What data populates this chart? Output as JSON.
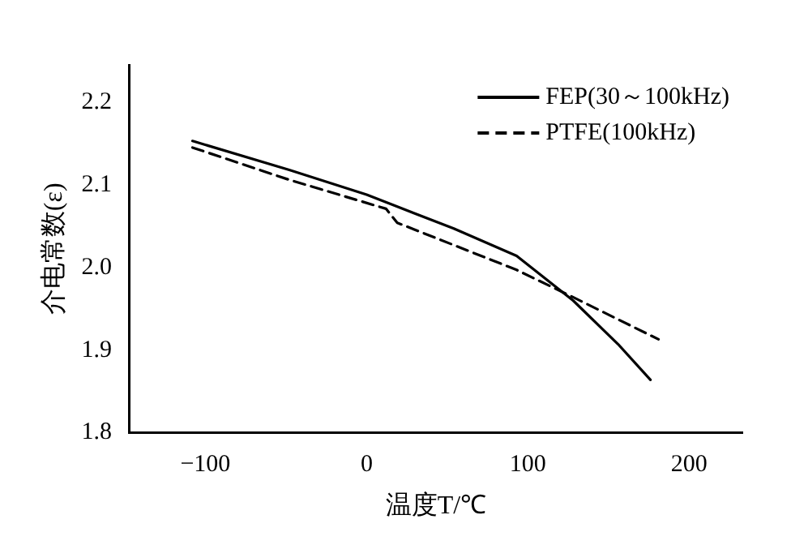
{
  "chart_data": {
    "type": "line",
    "xlabel": "温度T/℃",
    "ylabel": "介电常数(ε)",
    "series": [
      {
        "name": "FEP(30～100kHz)",
        "color": "#000000",
        "line_style": "solid",
        "x": [
          -108,
          -48,
          0,
          54,
          93,
          128,
          156,
          176
        ],
        "values": [
          2.153,
          2.118,
          2.088,
          2.047,
          2.014,
          1.96,
          1.907,
          1.864
        ]
      },
      {
        "name": "PTFE(100kHz)",
        "color": "#000000",
        "line_style": "dashed",
        "x": [
          -108,
          -48,
          12,
          19,
          93,
          128,
          181
        ],
        "values": [
          2.145,
          2.106,
          2.071,
          2.054,
          1.997,
          1.964,
          1.913
        ]
      }
    ],
    "xlim": [
      -147,
      233
    ],
    "xticks": [
      -100,
      0,
      100,
      200
    ],
    "ylim": [
      1.8,
      2.245
    ],
    "yticks": [
      1.8,
      1.9,
      {
        "value": 2.0,
        "label": "2.0"
      },
      2.1,
      2.2
    ],
    "grid": false,
    "legend": "top right",
    "marker": "none"
  }
}
